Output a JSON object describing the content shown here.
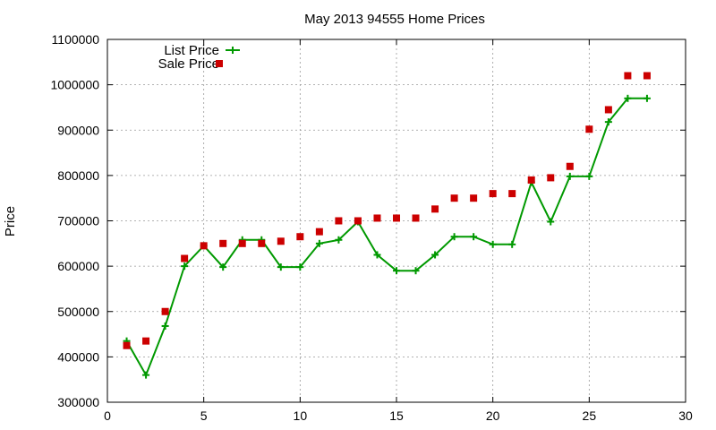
{
  "chart_data": {
    "type": "line",
    "title": "May 2013 94555 Home Prices",
    "xlabel": "",
    "ylabel": "Price",
    "xlim": [
      0,
      30
    ],
    "ylim": [
      300000,
      1100000
    ],
    "x_ticks": [
      0,
      5,
      10,
      15,
      20,
      25,
      30
    ],
    "y_ticks": [
      300000,
      400000,
      500000,
      600000,
      700000,
      800000,
      900000,
      1000000,
      1100000
    ],
    "grid": true,
    "legend_position": "top-left",
    "series": [
      {
        "name": "List Price",
        "style": "line with plus markers",
        "color": "#009900",
        "x": [
          1,
          2,
          3,
          4,
          5,
          6,
          7,
          8,
          9,
          10,
          11,
          12,
          13,
          14,
          15,
          16,
          17,
          18,
          19,
          20,
          21,
          22,
          23,
          24,
          25,
          26,
          27,
          28
        ],
        "values": [
          435000,
          360000,
          468000,
          600000,
          645000,
          598000,
          658000,
          658000,
          598000,
          598000,
          650000,
          658000,
          698000,
          625000,
          590000,
          590000,
          625000,
          665000,
          665000,
          648000,
          648000,
          785000,
          698000,
          798000,
          798000,
          918000,
          970000,
          970000
        ]
      },
      {
        "name": "Sale Price",
        "style": "square markers",
        "color": "#cc0000",
        "x": [
          1,
          2,
          3,
          4,
          5,
          6,
          7,
          8,
          9,
          10,
          11,
          12,
          13,
          14,
          15,
          16,
          17,
          18,
          19,
          20,
          21,
          22,
          23,
          24,
          25,
          26,
          27,
          28
        ],
        "values": [
          425000,
          435000,
          500000,
          617000,
          645000,
          650000,
          650000,
          650000,
          655000,
          665000,
          676000,
          700000,
          700000,
          706000,
          706000,
          706000,
          726000,
          750000,
          750000,
          760000,
          760000,
          790000,
          795000,
          820000,
          902000,
          945000,
          1020000,
          1020000
        ]
      }
    ]
  }
}
